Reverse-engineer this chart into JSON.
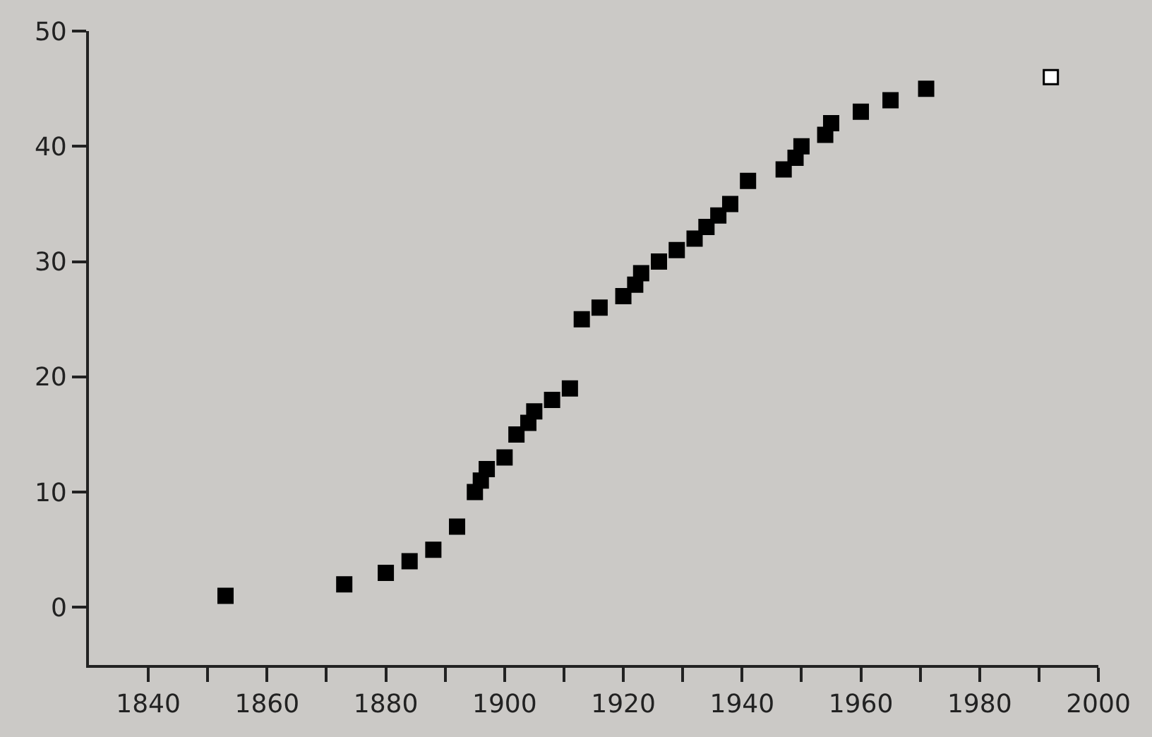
{
  "chart_data": {
    "type": "scatter",
    "marker": "square",
    "grid": false,
    "xlim": [
      1830,
      2000
    ],
    "ylim": [
      -5,
      50
    ],
    "xticks": [
      1840,
      {
        "value": 1850,
        "label": null
      },
      1860,
      {
        "value": 1870,
        "label": null
      },
      1880,
      {
        "value": 1890,
        "label": null
      },
      1900,
      {
        "value": 1910,
        "label": null
      },
      1920,
      {
        "value": 1930,
        "label": null
      },
      1940,
      {
        "value": 1950,
        "label": null
      },
      1960,
      {
        "value": 1970,
        "label": null
      },
      1980,
      {
        "value": 1990,
        "label": null
      },
      2000
    ],
    "yticks": [
      0,
      10,
      20,
      30,
      40,
      50
    ],
    "series": [
      {
        "color": "#000000",
        "x": [
          1853,
          1873,
          1880,
          1884,
          1888,
          1892,
          1895,
          1896,
          1897,
          1900,
          1902,
          1904,
          1905,
          1908,
          1911,
          1913,
          1916,
          1920,
          1922,
          1923,
          1926,
          1929,
          1932,
          1934,
          1936,
          1938,
          1941,
          1947,
          1949,
          1950,
          1954,
          1955,
          1960,
          1965,
          1971
        ],
        "values": [
          1,
          2,
          3,
          4,
          5,
          7,
          10,
          11,
          12,
          13,
          15,
          16,
          17,
          18,
          19,
          25,
          26,
          27,
          28,
          29,
          30,
          31,
          32,
          33,
          34,
          35,
          37,
          38,
          39,
          40,
          41,
          42,
          43,
          44,
          45
        ]
      },
      {
        "color": "#ffffff",
        "x": [
          1992
        ],
        "values": [
          46
        ]
      }
    ]
  }
}
